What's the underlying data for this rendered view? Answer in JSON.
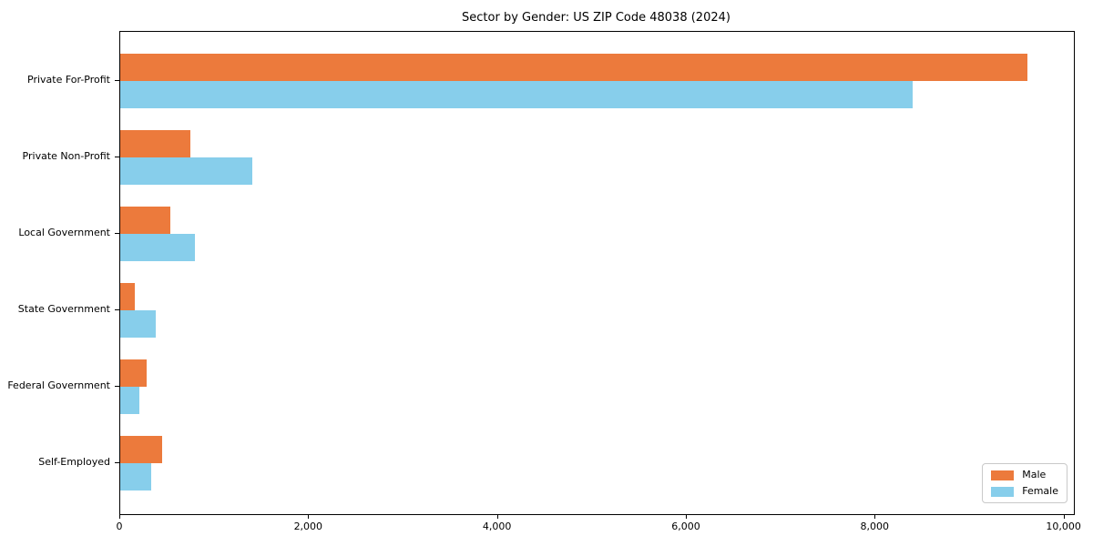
{
  "chart_data": {
    "type": "bar",
    "orientation": "horizontal",
    "title": "Sector by Gender: US ZIP Code 48038 (2024)",
    "categories": [
      "Private For-Profit",
      "Private Non-Profit",
      "Local Government",
      "State Government",
      "Federal Government",
      "Self-Employed"
    ],
    "series": [
      {
        "name": "Male",
        "color": "#EC7A3C",
        "values": [
          9610,
          740,
          530,
          150,
          280,
          440
        ]
      },
      {
        "name": "Female",
        "color": "#87CEEB",
        "values": [
          8390,
          1400,
          790,
          380,
          200,
          330
        ]
      }
    ],
    "xlabel": "",
    "ylabel": "",
    "xlim": [
      0,
      10100
    ],
    "xticks": {
      "values": [
        0,
        2000,
        4000,
        6000,
        8000,
        10000
      ],
      "labels": [
        "0",
        "2,000",
        "4,000",
        "6,000",
        "8,000",
        "10,000"
      ]
    },
    "grid": false,
    "legend": {
      "position": "lower right",
      "entries": [
        "Male",
        "Female"
      ]
    }
  }
}
